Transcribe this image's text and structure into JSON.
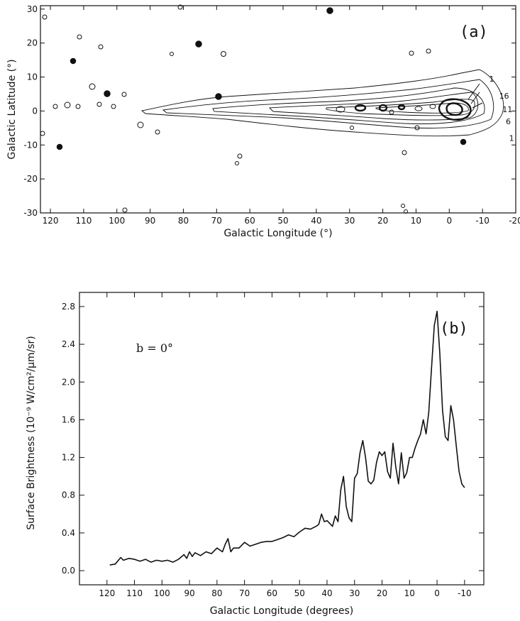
{
  "chart_data": [
    {
      "type": "contour",
      "panel_label": "(a)",
      "xlabel": "Galactic Longitude (°)",
      "ylabel": "Galactic Latitude (°)",
      "xlim": [
        123,
        -20
      ],
      "ylim": [
        -30,
        31
      ],
      "x_ticks": [
        120,
        110,
        100,
        90,
        80,
        70,
        60,
        50,
        40,
        30,
        20,
        10,
        0,
        -10,
        -20
      ],
      "x_tick_labels": [
        "120",
        "110",
        "100",
        "90",
        "80",
        "70",
        "60",
        "50",
        "40",
        "30",
        "20",
        "10",
        "0",
        "-10",
        "-20"
      ],
      "y_ticks": [
        -30,
        -20,
        -10,
        0,
        10,
        20,
        30
      ],
      "y_tick_labels": [
        "-30",
        "-20",
        "-10",
        "0",
        "10",
        "20",
        "30"
      ],
      "contour_labels": [
        {
          "text": "1",
          "l": -12,
          "b": 9.5
        },
        {
          "text": "16",
          "l": -15,
          "b": 4.5
        },
        {
          "text": "11",
          "l": -16,
          "b": 0.5
        },
        {
          "text": "6",
          "l": -17,
          "b": -3
        },
        {
          "text": "1",
          "l": -18,
          "b": -8
        }
      ]
    },
    {
      "type": "line",
      "panel_label": "(b)",
      "annotation": "b = 0°",
      "xlabel": "Galactic Longitude (degrees)",
      "ylabel": "Surface Brightness (10⁻⁹ W/cm²/μm/sr)",
      "xlim": [
        130,
        -17
      ],
      "ylim": [
        -0.15,
        2.95
      ],
      "x_ticks": [
        120,
        110,
        100,
        90,
        80,
        70,
        60,
        50,
        40,
        30,
        20,
        10,
        0,
        -10
      ],
      "x_tick_labels": [
        "120",
        "110",
        "100",
        "90",
        "80",
        "70",
        "60",
        "50",
        "40",
        "30",
        "20",
        "10",
        "0",
        "-10"
      ],
      "y_ticks": [
        0.0,
        0.4,
        0.8,
        1.2,
        1.6,
        2.0,
        2.4,
        2.8
      ],
      "y_tick_labels": [
        "0.0",
        "0.4",
        "0.8",
        "1.2",
        "1.6",
        "2.0",
        "2.4",
        "2.8"
      ],
      "series": [
        {
          "x": [
            119,
            117,
            115,
            114,
            112,
            110,
            108,
            106,
            104,
            102,
            100,
            98,
            96,
            94,
            92,
            91,
            90,
            89,
            88,
            86,
            84,
            82,
            80,
            78,
            77,
            76,
            75,
            74,
            72,
            70,
            68,
            66,
            64,
            62,
            60,
            58,
            56,
            54,
            52,
            50,
            48,
            46,
            44,
            43,
            42,
            41,
            40,
            38,
            37,
            36,
            35,
            34,
            33,
            32,
            31,
            30,
            29,
            28,
            27,
            26,
            25,
            24,
            23,
            22,
            21,
            20,
            19,
            18,
            17,
            16,
            15,
            14,
            13,
            12,
            11,
            10,
            9,
            8,
            7,
            6,
            5,
            4,
            3,
            2,
            1,
            0,
            -1,
            -2,
            -3,
            -4,
            -5,
            -6,
            -7,
            -8,
            -9,
            -10
          ],
          "y": [
            0.06,
            0.07,
            0.14,
            0.11,
            0.13,
            0.12,
            0.1,
            0.12,
            0.09,
            0.11,
            0.1,
            0.11,
            0.09,
            0.12,
            0.17,
            0.13,
            0.2,
            0.15,
            0.19,
            0.16,
            0.2,
            0.18,
            0.24,
            0.2,
            0.28,
            0.34,
            0.2,
            0.24,
            0.24,
            0.3,
            0.26,
            0.28,
            0.3,
            0.31,
            0.31,
            0.33,
            0.35,
            0.38,
            0.36,
            0.41,
            0.45,
            0.44,
            0.47,
            0.49,
            0.6,
            0.52,
            0.53,
            0.47,
            0.58,
            0.52,
            0.86,
            1.0,
            0.68,
            0.56,
            0.52,
            0.98,
            1.03,
            1.25,
            1.38,
            1.2,
            0.95,
            0.92,
            0.96,
            1.15,
            1.26,
            1.22,
            1.26,
            1.05,
            0.98,
            1.35,
            1.1,
            0.92,
            1.25,
            0.98,
            1.04,
            1.2,
            1.2,
            1.3,
            1.38,
            1.45,
            1.6,
            1.45,
            1.68,
            2.15,
            2.6,
            2.75,
            2.3,
            1.7,
            1.42,
            1.38,
            1.75,
            1.6,
            1.32,
            1.05,
            0.92,
            0.88
          ]
        }
      ]
    }
  ]
}
